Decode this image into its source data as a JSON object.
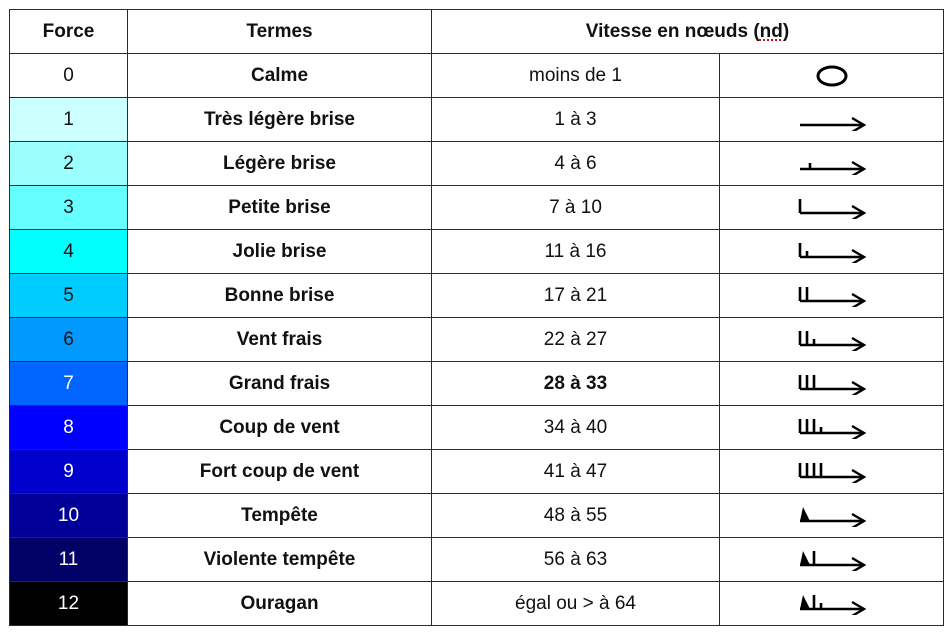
{
  "header": {
    "force": "Force",
    "terms": "Termes",
    "speed_prefix": "Vitesse en nœuds (",
    "speed_unit": "nd",
    "speed_suffix": ")"
  },
  "rows": [
    {
      "force": "0",
      "term": "Calme",
      "speed": "moins de 1",
      "bg": "#ffffff",
      "fg": "#111111",
      "symbol": "calm-circle-icon",
      "speed_bold": false
    },
    {
      "force": "1",
      "term": "Très légère brise",
      "speed": "1 à 3",
      "bg": "#ccffff",
      "fg": "#111111",
      "symbol": "wind-arrow-icon",
      "speed_bold": false
    },
    {
      "force": "2",
      "term": "Légère brise",
      "speed": "4 à 6",
      "bg": "#99ffff",
      "fg": "#111111",
      "symbol": "wind-short-barb-icon",
      "speed_bold": false
    },
    {
      "force": "3",
      "term": "Petite brise",
      "speed": "7 à 10",
      "bg": "#66ffff",
      "fg": "#111111",
      "symbol": "wind-one-barb-icon",
      "speed_bold": false
    },
    {
      "force": "4",
      "term": "Jolie brise",
      "speed": "11 à 16",
      "bg": "#00ffff",
      "fg": "#111111",
      "symbol": "wind-barb-half-icon",
      "speed_bold": false
    },
    {
      "force": "5",
      "term": "Bonne brise",
      "speed": "17 à 21",
      "bg": "#00ccff",
      "fg": "#111111",
      "symbol": "wind-two-barbs-icon",
      "speed_bold": false
    },
    {
      "force": "6",
      "term": "Vent frais",
      "speed": "22 à 27",
      "bg": "#0099ff",
      "fg": "#111111",
      "symbol": "wind-two-barbs-half-icon",
      "speed_bold": false
    },
    {
      "force": "7",
      "term": "Grand frais",
      "speed": "28 à 33",
      "bg": "#0066ff",
      "fg": "#ffffff",
      "symbol": "wind-three-barbs-icon",
      "speed_bold": true
    },
    {
      "force": "8",
      "term": "Coup de vent",
      "speed": "34 à 40",
      "bg": "#0000ff",
      "fg": "#ffffff",
      "symbol": "wind-three-barbs-half-icon",
      "speed_bold": false
    },
    {
      "force": "9",
      "term": "Fort coup de vent",
      "speed": "41 à 47",
      "bg": "#0000cc",
      "fg": "#ffffff",
      "symbol": "wind-four-barbs-icon",
      "speed_bold": false
    },
    {
      "force": "10",
      "term": "Tempête",
      "speed": "48 à 55",
      "bg": "#000099",
      "fg": "#ffffff",
      "symbol": "wind-pennant-icon",
      "speed_bold": false
    },
    {
      "force": "11",
      "term": "Violente tempête",
      "speed": "56 à 63",
      "bg": "#000066",
      "fg": "#ffffff",
      "symbol": "wind-pennant-barb-icon",
      "speed_bold": false
    },
    {
      "force": "12",
      "term": "Ouragan",
      "speed": "égal ou > à 64",
      "bg": "#000000",
      "fg": "#ffffff",
      "symbol": "wind-pennant-barb-half-icon",
      "speed_bold": false
    }
  ]
}
